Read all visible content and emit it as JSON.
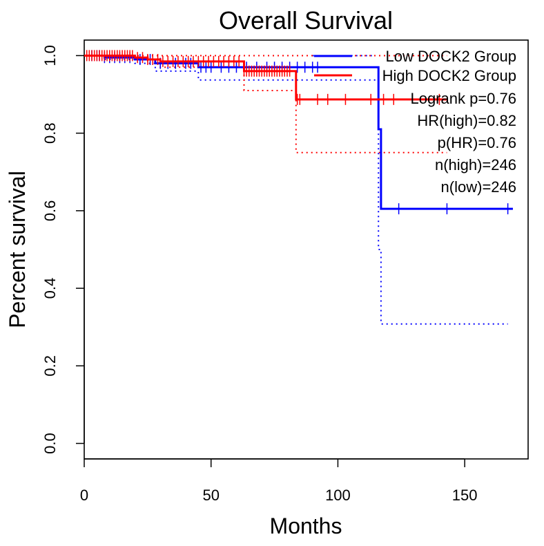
{
  "chart_data": {
    "type": "line",
    "title": "Overall Survival",
    "xlabel": "Months",
    "ylabel": "Percent survival",
    "xlim": [
      0,
      175
    ],
    "ylim": [
      -0.04,
      1.04
    ],
    "x_ticks": [
      0,
      50,
      100,
      150
    ],
    "y_ticks": [
      0.0,
      0.2,
      0.4,
      0.6,
      0.8,
      1.0
    ],
    "x_tick_labels": [
      "0",
      "50",
      "100",
      "150"
    ],
    "y_tick_labels": [
      "0.0",
      "0.2",
      "0.4",
      "0.6",
      "0.8",
      "1.0"
    ],
    "grid": false,
    "legend_position": "top-right",
    "series": [
      {
        "name": "Low DOCK2 Group",
        "color": "#0000FF",
        "line": "solid",
        "steps": [
          [
            0,
            1.0
          ],
          [
            8,
            0.995
          ],
          [
            20,
            0.99
          ],
          [
            28,
            0.98
          ],
          [
            45,
            0.97
          ],
          [
            114,
            0.97
          ],
          [
            116,
            0.81
          ],
          [
            117,
            0.605
          ],
          [
            169,
            0.605
          ]
        ],
        "censor_x": [
          3,
          5,
          6,
          8,
          10,
          12,
          14,
          16,
          18,
          22,
          26,
          30,
          33,
          36,
          40,
          42,
          46,
          48,
          50,
          54,
          57,
          60,
          64,
          68,
          72,
          75,
          78,
          81,
          84,
          87,
          90,
          92,
          124,
          143,
          167
        ]
      },
      {
        "name": "",
        "color": "#0000FF",
        "line": "dotted",
        "steps": [
          [
            0,
            1.0
          ],
          [
            8,
            0.99
          ],
          [
            20,
            0.98
          ],
          [
            28,
            0.96
          ],
          [
            45,
            0.937
          ],
          [
            114,
            0.937
          ],
          [
            116,
            0.5
          ],
          [
            117,
            0.308
          ],
          [
            167,
            0.308
          ]
        ]
      },
      {
        "name": "",
        "color": "#0000FF",
        "line": "dotted",
        "steps": [
          [
            90,
            1.0
          ],
          [
            114,
            1.0
          ]
        ]
      },
      {
        "name": "High DOCK2 Group",
        "color": "#FF0000",
        "line": "solid",
        "steps": [
          [
            0,
            1.0
          ],
          [
            20,
            0.995
          ],
          [
            25,
            0.99
          ],
          [
            30,
            0.985
          ],
          [
            62,
            0.985
          ],
          [
            63,
            0.96
          ],
          [
            83,
            0.96
          ],
          [
            83.5,
            0.887
          ],
          [
            143,
            0.887
          ]
        ],
        "censor_x": [
          1,
          2,
          3,
          4,
          5,
          6,
          7,
          8,
          9,
          10,
          11,
          12,
          13,
          14,
          15,
          16,
          17,
          18,
          19,
          21,
          23,
          25,
          27,
          29,
          31,
          33,
          35,
          37,
          39,
          41,
          43,
          45,
          47,
          49,
          51,
          53,
          55,
          57,
          59,
          61,
          63,
          64,
          65,
          66,
          67,
          68,
          69,
          70,
          71,
          72,
          73,
          74,
          75,
          76,
          77,
          78,
          79,
          80,
          81,
          84,
          85,
          92,
          96,
          103,
          113,
          118,
          122,
          140
        ]
      },
      {
        "name": "",
        "color": "#FF0000",
        "line": "dotted",
        "steps": [
          [
            0,
            1.0
          ],
          [
            20,
            0.99
          ],
          [
            25,
            0.98
          ],
          [
            30,
            0.97
          ],
          [
            62,
            0.97
          ],
          [
            63,
            0.91
          ],
          [
            83,
            0.91
          ],
          [
            83.5,
            0.75
          ],
          [
            143,
            0.75
          ]
        ]
      },
      {
        "name": "",
        "color": "#FF0000",
        "line": "dotted",
        "steps": [
          [
            0,
            1.0
          ],
          [
            143,
            1.0
          ]
        ]
      }
    ],
    "annotations": [
      "Logrank p=0.76",
      "HR(high)=0.82",
      "p(HR)=0.76",
      "n(high)=246",
      "n(low)=246"
    ]
  }
}
